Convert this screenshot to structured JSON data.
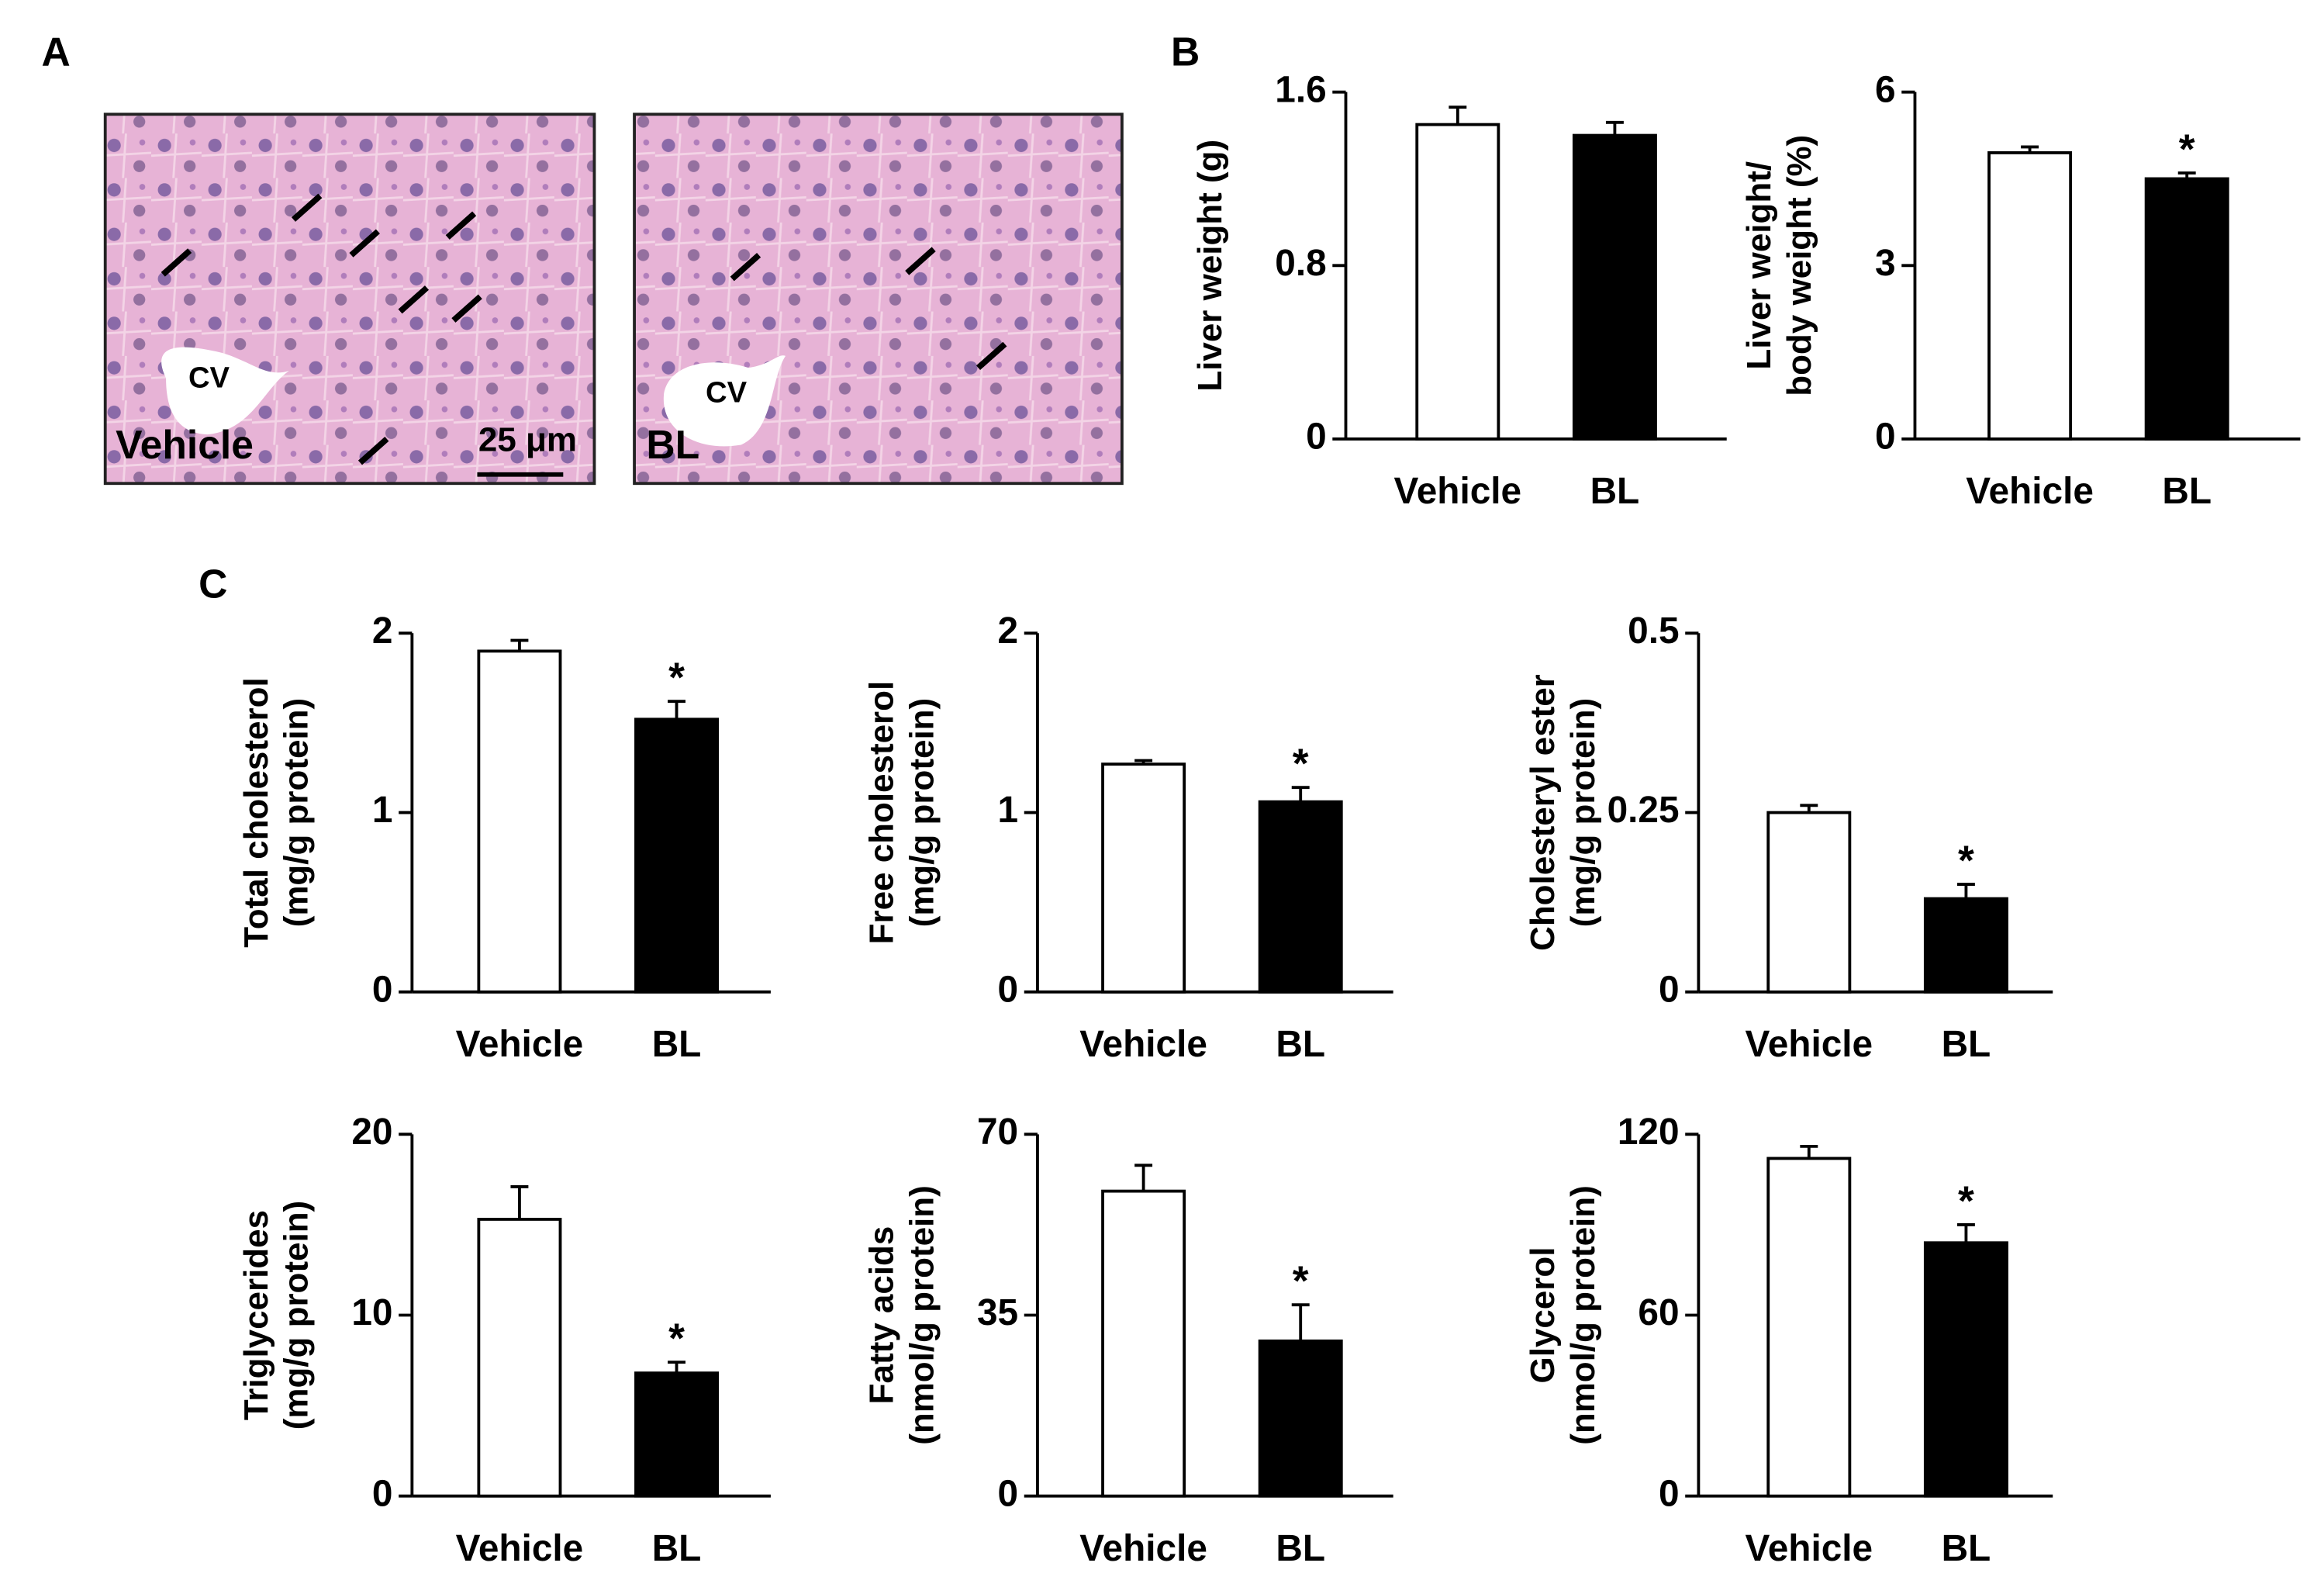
{
  "panels": [
    "A",
    "B",
    "C"
  ],
  "micrographs": [
    {
      "label": "Vehicle",
      "vessel": "CV",
      "scale_bar": "25 μm"
    },
    {
      "label": "BL",
      "vessel": "CV"
    }
  ],
  "chart_data": [
    {
      "type": "bar",
      "ylabel": [
        "Liver weight (g)"
      ],
      "categories": [
        "Vehicle",
        "BL"
      ],
      "values": [
        1.45,
        1.4
      ],
      "errors": [
        0.08,
        0.06
      ],
      "colors": [
        "#ffffff",
        "#000000"
      ],
      "significance": [
        null,
        null
      ],
      "ylim": [
        0,
        1.6
      ],
      "yticks": [
        0,
        0.8,
        1.6
      ]
    },
    {
      "type": "bar",
      "ylabel": [
        "Liver weight/",
        "body weight (%)"
      ],
      "categories": [
        "Vehicle",
        "BL"
      ],
      "values": [
        4.95,
        4.5
      ],
      "errors": [
        0.1,
        0.1
      ],
      "colors": [
        "#ffffff",
        "#000000"
      ],
      "significance": [
        null,
        "*"
      ],
      "ylim": [
        0,
        6
      ],
      "yticks": [
        0,
        3,
        6
      ]
    },
    {
      "type": "bar",
      "ylabel": [
        "Total cholesterol",
        "(mg/g protein)"
      ],
      "categories": [
        "Vehicle",
        "BL"
      ],
      "values": [
        1.9,
        1.52
      ],
      "errors": [
        0.06,
        0.1
      ],
      "colors": [
        "#ffffff",
        "#000000"
      ],
      "significance": [
        null,
        "*"
      ],
      "ylim": [
        0,
        2
      ],
      "yticks": [
        0,
        1,
        2
      ]
    },
    {
      "type": "bar",
      "ylabel": [
        "Free cholesterol",
        "(mg/g protein)"
      ],
      "categories": [
        "Vehicle",
        "BL"
      ],
      "values": [
        1.27,
        1.06
      ],
      "errors": [
        0.02,
        0.08
      ],
      "colors": [
        "#ffffff",
        "#000000"
      ],
      "significance": [
        null,
        "*"
      ],
      "ylim": [
        0,
        2
      ],
      "yticks": [
        0,
        1,
        2
      ]
    },
    {
      "type": "bar",
      "ylabel": [
        "Cholesteryl ester",
        "(mg/g protein)"
      ],
      "categories": [
        "Vehicle",
        "BL"
      ],
      "values": [
        0.25,
        0.13
      ],
      "errors": [
        0.01,
        0.02
      ],
      "colors": [
        "#ffffff",
        "#000000"
      ],
      "significance": [
        null,
        "*"
      ],
      "ylim": [
        0,
        0.5
      ],
      "yticks": [
        0,
        0.25,
        0.5
      ]
    },
    {
      "type": "bar",
      "ylabel": [
        "Triglycerides",
        "(mg/g protein)"
      ],
      "categories": [
        "Vehicle",
        "BL"
      ],
      "values": [
        15.3,
        6.8
      ],
      "errors": [
        1.8,
        0.6
      ],
      "colors": [
        "#ffffff",
        "#000000"
      ],
      "significance": [
        null,
        "*"
      ],
      "ylim": [
        0,
        20
      ],
      "yticks": [
        0,
        10,
        20
      ]
    },
    {
      "type": "bar",
      "ylabel": [
        "Fatty acids",
        "(nmol/g protein)"
      ],
      "categories": [
        "Vehicle",
        "BL"
      ],
      "values": [
        59,
        30
      ],
      "errors": [
        5,
        7
      ],
      "colors": [
        "#ffffff",
        "#000000"
      ],
      "significance": [
        null,
        "*"
      ],
      "ylim": [
        0,
        70
      ],
      "yticks": [
        0,
        35,
        70
      ]
    },
    {
      "type": "bar",
      "ylabel": [
        "Glycerol",
        "(nmol/g protein)"
      ],
      "categories": [
        "Vehicle",
        "BL"
      ],
      "values": [
        112,
        84
      ],
      "errors": [
        4,
        6
      ],
      "colors": [
        "#ffffff",
        "#000000"
      ],
      "significance": [
        null,
        "*"
      ],
      "ylim": [
        0,
        120
      ],
      "yticks": [
        0,
        60,
        120
      ]
    }
  ]
}
